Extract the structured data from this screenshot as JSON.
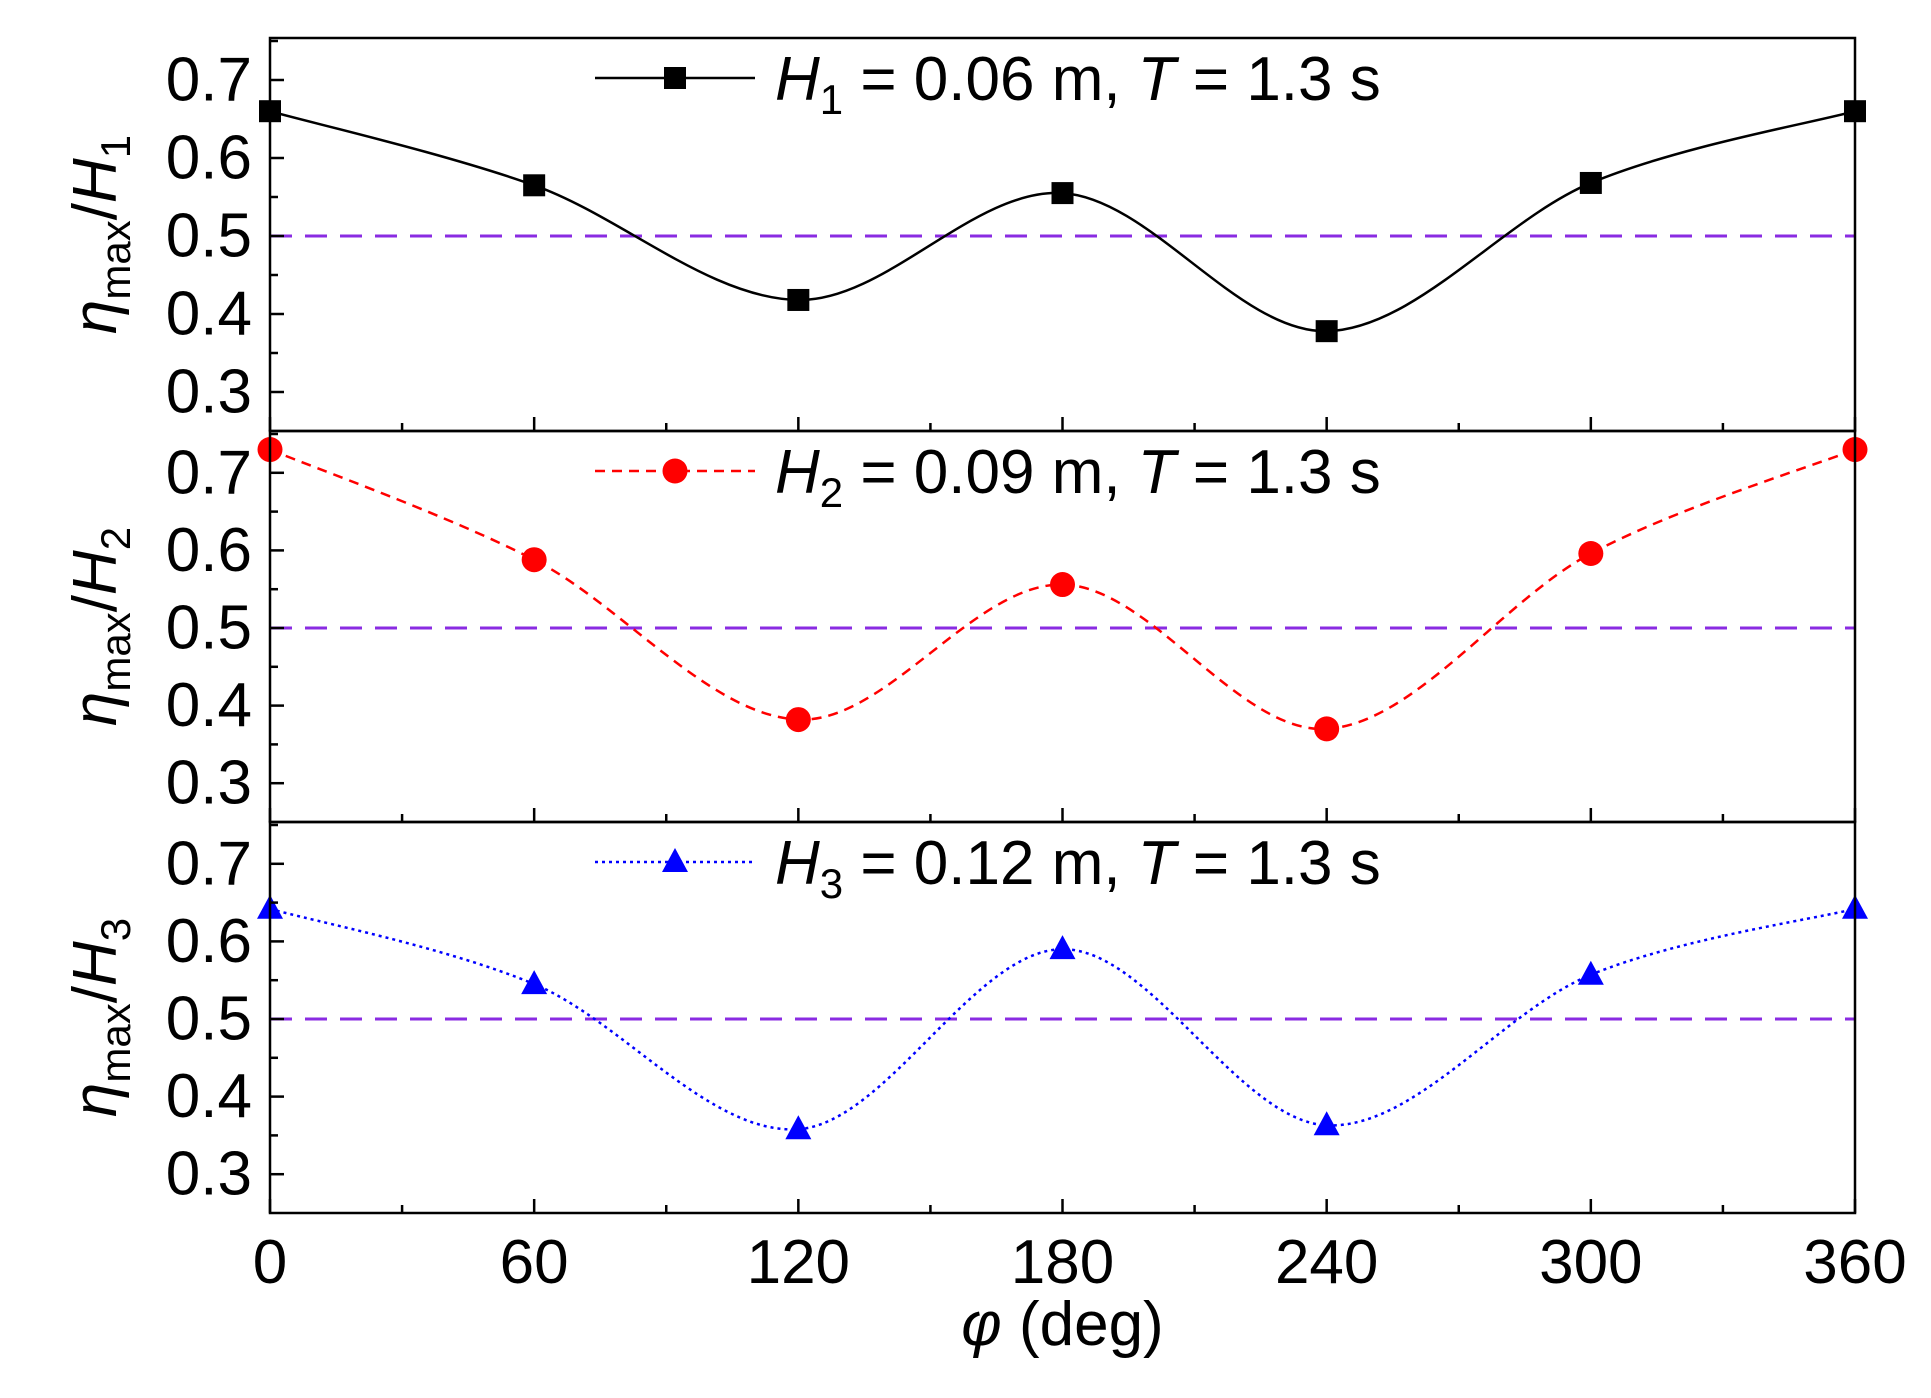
{
  "chart_data": [
    {
      "type": "line",
      "panel": "top",
      "series": [
        {
          "name": "H_1 = 0.06 m, T = 1.3 s",
          "x": [
            0,
            60,
            120,
            180,
            240,
            300,
            360
          ],
          "values": [
            0.66,
            0.565,
            0.418,
            0.555,
            0.378,
            0.568,
            0.66
          ],
          "color": "#000000",
          "line_style": "solid",
          "marker": "square"
        }
      ],
      "reference_line": {
        "y": 0.5,
        "color": "#8a2be2",
        "line_style": "dashed"
      },
      "ylabel": {
        "main": "η",
        "sub": "max",
        "sep": "/",
        "var": "H",
        "var_sub": "1"
      },
      "legend": {
        "var": "H",
        "var_sub": "1",
        "text": " = 0.06 m, ",
        "t_var": "T",
        "t_text": " = 1.3 s",
        "placement": "top-center"
      },
      "ylim": [
        0.25,
        0.75
      ],
      "yticks": [
        "0.3",
        "0.4",
        "0.5",
        "0.6",
        "0.7"
      ],
      "xlim": [
        0,
        360
      ]
    },
    {
      "type": "line",
      "panel": "middle",
      "series": [
        {
          "name": "H_2 = 0.09 m, T = 1.3 s",
          "x": [
            0,
            60,
            120,
            180,
            240,
            300,
            360
          ],
          "values": [
            0.73,
            0.588,
            0.382,
            0.556,
            0.37,
            0.596,
            0.73
          ],
          "color": "#ff0000",
          "line_style": "dashed",
          "marker": "circle"
        }
      ],
      "reference_line": {
        "y": 0.5,
        "color": "#8a2be2",
        "line_style": "dashed"
      },
      "ylabel": {
        "main": "η",
        "sub": "max",
        "sep": "/",
        "var": "H",
        "var_sub": "2"
      },
      "legend": {
        "var": "H",
        "var_sub": "2",
        "text": " = 0.09 m, ",
        "t_var": "T",
        "t_text": " = 1.3 s",
        "placement": "top-center"
      },
      "ylim": [
        0.25,
        0.75
      ],
      "yticks": [
        "0.3",
        "0.4",
        "0.5",
        "0.6",
        "0.7"
      ],
      "xlim": [
        0,
        360
      ]
    },
    {
      "type": "line",
      "panel": "bottom",
      "series": [
        {
          "name": "H_3 = 0.12 m, T = 1.3 s",
          "x": [
            0,
            60,
            120,
            180,
            240,
            300,
            360
          ],
          "values": [
            0.642,
            0.545,
            0.358,
            0.59,
            0.363,
            0.557,
            0.642
          ],
          "color": "#0000ff",
          "line_style": "dotted",
          "marker": "triangle"
        }
      ],
      "reference_line": {
        "y": 0.5,
        "color": "#8a2be2",
        "line_style": "dashed"
      },
      "ylabel": {
        "main": "η",
        "sub": "max",
        "sep": "/",
        "var": "H",
        "var_sub": "3"
      },
      "legend": {
        "var": "H",
        "var_sub": "3",
        "text": " = 0.12 m, ",
        "t_var": "T",
        "t_text": " = 1.3 s",
        "placement": "top-center"
      },
      "ylim": [
        0.25,
        0.75
      ],
      "yticks": [
        "0.3",
        "0.4",
        "0.5",
        "0.6",
        "0.7"
      ],
      "xlim": [
        0,
        360
      ],
      "xticks": [
        "0",
        "60",
        "120",
        "180",
        "240",
        "300",
        "360"
      ]
    }
  ],
  "xlabel": {
    "var": "φ",
    "text": " (deg)"
  }
}
